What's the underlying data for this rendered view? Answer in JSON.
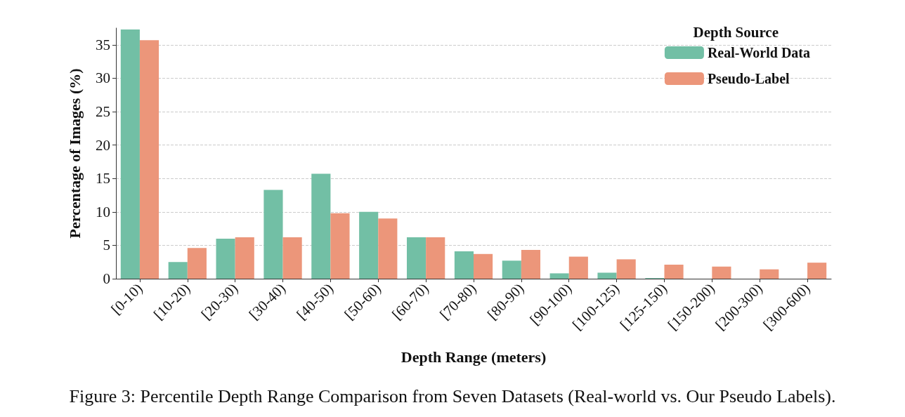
{
  "chart_data": {
    "type": "bar",
    "xlabel": "Depth Range (meters)",
    "ylabel": "Percentage of Images (%)",
    "legend_title": "Depth Source",
    "categories": [
      "[0-10)",
      "[10-20)",
      "[20-30)",
      "[30-40)",
      "[40-50)",
      "[50-60)",
      "[60-70)",
      "[70-80)",
      "[80-90)",
      "[90-100)",
      "[100-125)",
      "[125-150)",
      "[150-200)",
      "[200-300)",
      "[300-600)"
    ],
    "series": [
      {
        "name": "Real-World Data",
        "color": "#72bfa5",
        "values": [
          37.3,
          2.5,
          6.0,
          13.3,
          15.7,
          10.0,
          6.2,
          4.1,
          2.7,
          0.8,
          0.9,
          0.1,
          0,
          0,
          0
        ]
      },
      {
        "name": "Pseudo-Label",
        "color": "#ec967a",
        "values": [
          35.7,
          4.6,
          6.2,
          6.2,
          9.8,
          9.0,
          6.2,
          3.7,
          4.3,
          3.3,
          2.9,
          2.1,
          1.8,
          1.4,
          2.4
        ]
      }
    ],
    "ylim": [
      0,
      37.5
    ],
    "yticks": [
      0,
      5,
      10,
      15,
      20,
      25,
      30,
      35
    ],
    "grid": "y",
    "legend": "top right",
    "annotations": [
      "Figure 3: Percentile Depth Range Comparison from Seven Datasets (Real-world vs. Our Pseudo Labels)."
    ]
  }
}
